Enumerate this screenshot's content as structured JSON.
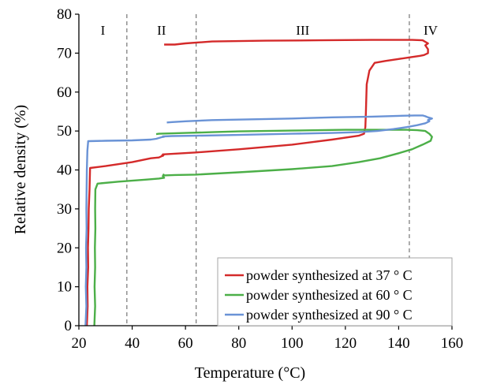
{
  "chart_data": {
    "type": "line",
    "xlabel": "Temperature (°C)",
    "ylabel": "Relative density (%)",
    "xlim": [
      20,
      160
    ],
    "ylim": [
      0,
      80
    ],
    "xticks": [
      20,
      40,
      60,
      80,
      100,
      120,
      140,
      160
    ],
    "yticks": [
      0,
      10,
      20,
      30,
      40,
      50,
      60,
      70,
      80
    ],
    "grid": false,
    "legend_position": "bottom-right",
    "region_boundaries": [
      38,
      64,
      144
    ],
    "regions": [
      {
        "label": "I",
        "x": 29
      },
      {
        "label": "II",
        "x": 51
      },
      {
        "label": "III",
        "x": 104
      },
      {
        "label": "IV",
        "x": 152
      }
    ],
    "series": [
      {
        "name": "powder synthesized at 37 ° C",
        "color": "#d42a2a",
        "x": [
          23,
          23.3,
          23.2,
          23.5,
          23.4,
          23.6,
          23.7,
          24,
          24.2,
          30,
          40,
          47,
          50,
          51,
          51.6,
          51.5,
          52,
          64,
          80,
          100,
          115,
          125,
          127,
          127.5,
          127.7,
          128,
          129,
          131,
          135,
          140,
          145,
          148,
          149.5,
          151,
          151,
          150,
          151,
          149,
          145,
          130,
          110,
          90,
          70,
          60,
          56,
          52
        ],
        "y": [
          0,
          5,
          10,
          15,
          20,
          25,
          30,
          35,
          40.5,
          41,
          42,
          43,
          43.2,
          43.5,
          44,
          43.6,
          44,
          44.5,
          45.3,
          46.5,
          47.8,
          48.8,
          49.3,
          51,
          55,
          62,
          65.5,
          67.5,
          68,
          68.5,
          69,
          69.3,
          69.5,
          70,
          71,
          72,
          72.5,
          73.3,
          73.4,
          73.4,
          73.3,
          73.2,
          73,
          72.5,
          72.2,
          72.2
        ]
      },
      {
        "name": "powder synthesized at 60 ° C",
        "color": "#4caf48",
        "x": [
          25.8,
          26.1,
          25.9,
          26.1,
          26,
          26.2,
          26.1,
          26.2,
          27,
          35,
          45,
          50,
          52,
          51.5,
          51.8,
          52,
          56,
          64,
          80,
          100,
          115,
          125,
          133,
          140,
          145,
          149,
          152,
          152.5,
          151.5,
          150,
          147,
          143,
          138,
          130,
          120,
          110,
          100,
          80,
          70,
          60,
          50,
          49
        ],
        "y": [
          0,
          5,
          10,
          15,
          20,
          25,
          30,
          35,
          36.5,
          37,
          37.5,
          37.8,
          38,
          38.4,
          38.8,
          38.6,
          38.7,
          38.8,
          39.4,
          40.2,
          41,
          42,
          43,
          44.3,
          45.3,
          46.5,
          47.5,
          48.5,
          49.3,
          50,
          50.2,
          50.3,
          50.3,
          50.3,
          50.3,
          50.2,
          50.1,
          49.9,
          49.7,
          49.5,
          49.3,
          49.2
        ]
      },
      {
        "name": "powder synthesized at 90 ° C",
        "color": "#6a93d6",
        "x": [
          22.5,
          22.8,
          22.6,
          22.8,
          22.7,
          22.9,
          22.8,
          22.9,
          23,
          23.2,
          23.5,
          30,
          40,
          47,
          49,
          50,
          51,
          52,
          51.5,
          55,
          64,
          80,
          100,
          115,
          125,
          132,
          138,
          143,
          147,
          150,
          151.5,
          151,
          152.5,
          151,
          150,
          149,
          146,
          140,
          130,
          115,
          100,
          85,
          70,
          60,
          55,
          53
        ],
        "y": [
          0,
          5,
          10,
          15,
          20,
          25,
          30,
          35,
          40,
          45,
          47.4,
          47.5,
          47.6,
          47.8,
          48,
          48.2,
          48.4,
          48.5,
          48.6,
          48.7,
          48.8,
          49,
          49.3,
          49.5,
          49.7,
          50,
          50.5,
          51,
          51.5,
          52,
          52.5,
          52.8,
          53.2,
          53.5,
          53.8,
          54,
          54,
          53.9,
          53.7,
          53.5,
          53.2,
          53,
          52.8,
          52.5,
          52.3,
          52.2
        ]
      }
    ]
  }
}
